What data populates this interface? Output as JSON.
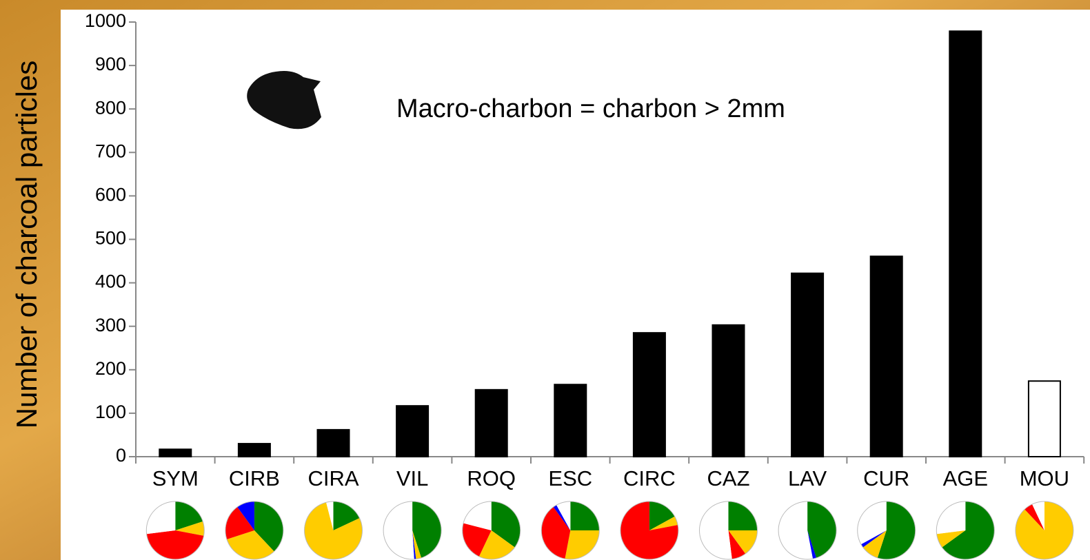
{
  "chart_data": {
    "type": "bar",
    "y_label": "Number of charcoal particles",
    "annotation": "Macro-charbon = charbon > 2mm",
    "categories": [
      "SYM",
      "CIRB",
      "CIRA",
      "VIL",
      "ROQ",
      "ESC",
      "CIRC",
      "CAZ",
      "LAV",
      "CUR",
      "AGE",
      "MOU"
    ],
    "values": [
      17,
      30,
      62,
      117,
      154,
      166,
      285,
      303,
      422,
      461,
      979,
      174
    ],
    "colors": [
      "#000000",
      "#000000",
      "#000000",
      "#000000",
      "#000000",
      "#000000",
      "#000000",
      "#000000",
      "#000000",
      "#000000",
      "#000000",
      "#ffffff"
    ],
    "ylim": [
      0,
      1000
    ],
    "yticks": [
      0,
      100,
      200,
      300,
      400,
      500,
      600,
      700,
      800,
      900,
      1000
    ],
    "pie_colors": [
      "#008000",
      "#ffcc00",
      "#ff0000",
      "#0000ff",
      "#ffffff"
    ],
    "pies": [
      [
        20,
        8,
        45,
        0,
        27
      ],
      [
        38,
        32,
        20,
        10,
        0
      ],
      [
        18,
        78,
        0,
        0,
        4
      ],
      [
        45,
        3,
        0,
        1,
        51
      ],
      [
        35,
        22,
        22,
        0,
        21
      ],
      [
        25,
        28,
        37,
        2,
        8
      ],
      [
        17,
        5,
        78,
        0,
        0
      ],
      [
        25,
        15,
        8,
        0,
        52
      ],
      [
        45,
        0,
        0,
        2,
        53
      ],
      [
        55,
        10,
        0,
        2,
        33
      ],
      [
        65,
        8,
        0,
        0,
        27
      ],
      [
        0,
        88,
        5,
        0,
        7
      ]
    ]
  }
}
